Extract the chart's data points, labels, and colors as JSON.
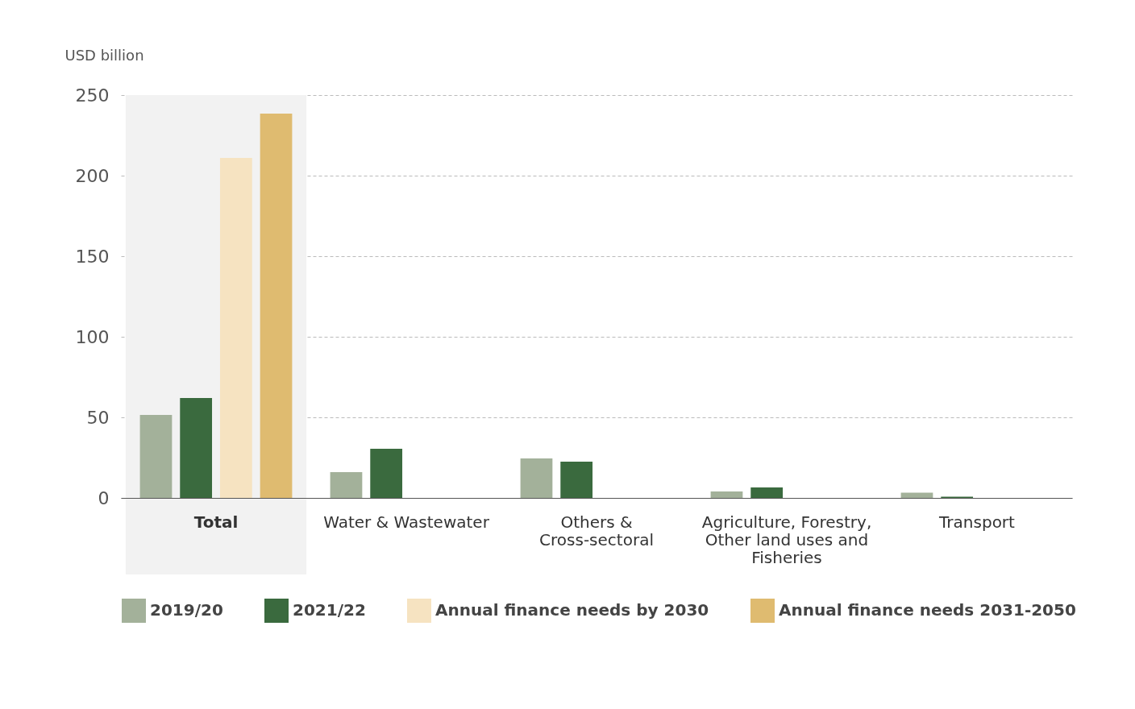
{
  "chart_data": {
    "type": "bar",
    "ylabel": "USD billion",
    "categories": [
      "Total",
      "Water & Wastewater",
      "Others & Cross-sectoral",
      "Agriculture, Forestry, Other land uses and Fisheries",
      "Transport"
    ],
    "series": [
      {
        "name": "2019/20",
        "color": "#a3b19a",
        "values": [
          51.5,
          16,
          24.5,
          4,
          3.3
        ]
      },
      {
        "name": "2021/22",
        "color": "#3a6a3e",
        "values": [
          62,
          30.5,
          22.5,
          6.5,
          0.8
        ]
      },
      {
        "name": "Annual finance needs by 2030",
        "color": "#f6e3c1",
        "values": [
          211,
          null,
          null,
          null,
          null
        ]
      },
      {
        "name": "Annual finance needs 2031-2050",
        "color": "#dfbb70",
        "values": [
          238.5,
          null,
          null,
          null,
          null
        ]
      }
    ],
    "ylim": [
      0,
      250
    ],
    "yticks": [
      0,
      50,
      100,
      150,
      200,
      250
    ],
    "grid": "y",
    "legend": "bottom",
    "bands": [
      {
        "axis": "x",
        "from": "Total",
        "to": "Total",
        "color": "#f2f2f2"
      }
    ]
  }
}
